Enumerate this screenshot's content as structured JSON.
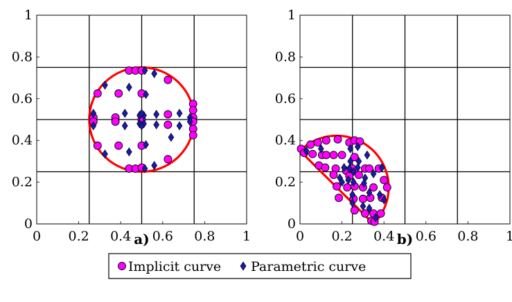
{
  "colors": {
    "curve": "#ff0000",
    "implicit_fill": "#ff00ff",
    "parametric_fill": "#1a1aa8",
    "grid": "#000000"
  },
  "legend": {
    "implicit_label": "Implicit curve",
    "parametric_label": "Parametric curve"
  },
  "chart_data": [
    {
      "type": "scatter",
      "panel_label": "a)",
      "xlim": [
        0,
        1
      ],
      "ylim": [
        0,
        1
      ],
      "x_ticks": [
        "0",
        "0.2",
        "0.4",
        "0.6",
        "0.8",
        "1"
      ],
      "y_ticks": [
        "0",
        "0.2",
        "0.4",
        "0.6",
        "0.8",
        "1"
      ],
      "grid_lines": [
        0.25,
        0.5,
        0.75
      ],
      "curve": {
        "shape": "circle",
        "center": [
          0.5,
          0.5
        ],
        "radius": 0.25
      },
      "series": [
        {
          "name": "Implicit curve",
          "marker": "circle",
          "points": [
            [
              0.44,
              0.735
            ],
            [
              0.47,
              0.735
            ],
            [
              0.5,
              0.735
            ],
            [
              0.29,
              0.625
            ],
            [
              0.39,
              0.625
            ],
            [
              0.5,
              0.625
            ],
            [
              0.625,
              0.69
            ],
            [
              0.745,
              0.575
            ],
            [
              0.745,
              0.545
            ],
            [
              0.27,
              0.51
            ],
            [
              0.27,
              0.49
            ],
            [
              0.375,
              0.51
            ],
            [
              0.375,
              0.49
            ],
            [
              0.5,
              0.5
            ],
            [
              0.625,
              0.525
            ],
            [
              0.625,
              0.475
            ],
            [
              0.745,
              0.51
            ],
            [
              0.745,
              0.49
            ],
            [
              0.745,
              0.455
            ],
            [
              0.745,
              0.425
            ],
            [
              0.29,
              0.375
            ],
            [
              0.39,
              0.375
            ],
            [
              0.5,
              0.375
            ],
            [
              0.625,
              0.31
            ],
            [
              0.44,
              0.265
            ],
            [
              0.47,
              0.265
            ],
            [
              0.5,
              0.27
            ]
          ]
        },
        {
          "name": "Parametric curve",
          "marker": "diamond",
          "points": [
            [
              0.515,
              0.735
            ],
            [
              0.56,
              0.72
            ],
            [
              0.325,
              0.665
            ],
            [
              0.44,
              0.655
            ],
            [
              0.52,
              0.62
            ],
            [
              0.27,
              0.53
            ],
            [
              0.27,
              0.47
            ],
            [
              0.42,
              0.53
            ],
            [
              0.42,
              0.47
            ],
            [
              0.49,
              0.52
            ],
            [
              0.51,
              0.52
            ],
            [
              0.49,
              0.48
            ],
            [
              0.51,
              0.48
            ],
            [
              0.5,
              0.53
            ],
            [
              0.5,
              0.47
            ],
            [
              0.57,
              0.525
            ],
            [
              0.57,
              0.475
            ],
            [
              0.68,
              0.53
            ],
            [
              0.68,
              0.47
            ],
            [
              0.73,
              0.51
            ],
            [
              0.73,
              0.49
            ],
            [
              0.325,
              0.335
            ],
            [
              0.44,
              0.345
            ],
            [
              0.52,
              0.38
            ],
            [
              0.56,
              0.28
            ],
            [
              0.515,
              0.265
            ],
            [
              0.64,
              0.415
            ]
          ]
        }
      ]
    },
    {
      "type": "scatter",
      "panel_label": "b)",
      "xlim": [
        0,
        1
      ],
      "ylim": [
        0,
        1
      ],
      "x_ticks": [
        "0",
        "0.2",
        "0.4",
        "0.6",
        "0.8",
        "1"
      ],
      "y_ticks": [
        "0",
        "0.2",
        "0.4",
        "0.6",
        "0.8",
        "1"
      ],
      "grid_lines": [
        0.25,
        0.5,
        0.75
      ],
      "curve": {
        "shape": "half-disk"
      },
      "series": [
        {
          "name": "Implicit curve",
          "marker": "circle",
          "points": [
            [
              0.005,
              0.36
            ],
            [
              0.02,
              0.34
            ],
            [
              0.05,
              0.38
            ],
            [
              0.085,
              0.39
            ],
            [
              0.125,
              0.4
            ],
            [
              0.18,
              0.405
            ],
            [
              0.235,
              0.39
            ],
            [
              0.26,
              0.4
            ],
            [
              0.285,
              0.395
            ],
            [
              0.06,
              0.335
            ],
            [
              0.105,
              0.33
            ],
            [
              0.125,
              0.33
            ],
            [
              0.16,
              0.33
            ],
            [
              0.2,
              0.33
            ],
            [
              0.26,
              0.32
            ],
            [
              0.09,
              0.28
            ],
            [
              0.12,
              0.27
            ],
            [
              0.17,
              0.265
            ],
            [
              0.22,
              0.255
            ],
            [
              0.25,
              0.265
            ],
            [
              0.31,
              0.265
            ],
            [
              0.33,
              0.265
            ],
            [
              0.375,
              0.265
            ],
            [
              0.16,
              0.235
            ],
            [
              0.235,
              0.23
            ],
            [
              0.28,
              0.235
            ],
            [
              0.4,
              0.21
            ],
            [
              0.175,
              0.18
            ],
            [
              0.225,
              0.175
            ],
            [
              0.26,
              0.18
            ],
            [
              0.3,
              0.175
            ],
            [
              0.35,
              0.175
            ],
            [
              0.415,
              0.175
            ],
            [
              0.185,
              0.125
            ],
            [
              0.255,
              0.12
            ],
            [
              0.3,
              0.12
            ],
            [
              0.335,
              0.125
            ],
            [
              0.39,
              0.125
            ],
            [
              0.26,
              0.065
            ],
            [
              0.31,
              0.05
            ],
            [
              0.35,
              0.05
            ],
            [
              0.385,
              0.05
            ],
            [
              0.34,
              0.015
            ],
            [
              0.355,
              0.01
            ]
          ]
        },
        {
          "name": "Parametric curve",
          "marker": "diamond",
          "points": [
            [
              0.03,
              0.35
            ],
            [
              0.1,
              0.36
            ],
            [
              0.24,
              0.36
            ],
            [
              0.275,
              0.37
            ],
            [
              0.32,
              0.33
            ],
            [
              0.24,
              0.3
            ],
            [
              0.28,
              0.3
            ],
            [
              0.21,
              0.27
            ],
            [
              0.235,
              0.265
            ],
            [
              0.19,
              0.22
            ],
            [
              0.23,
              0.21
            ],
            [
              0.255,
              0.25
            ],
            [
              0.275,
              0.27
            ],
            [
              0.31,
              0.22
            ],
            [
              0.35,
              0.24
            ],
            [
              0.39,
              0.27
            ],
            [
              0.2,
              0.2
            ],
            [
              0.255,
              0.2
            ],
            [
              0.305,
              0.195
            ],
            [
              0.25,
              0.14
            ],
            [
              0.33,
              0.15
            ],
            [
              0.38,
              0.14
            ],
            [
              0.4,
              0.115
            ],
            [
              0.25,
              0.1
            ],
            [
              0.3,
              0.085
            ],
            [
              0.33,
              0.075
            ],
            [
              0.36,
              0.03
            ]
          ]
        }
      ]
    }
  ]
}
